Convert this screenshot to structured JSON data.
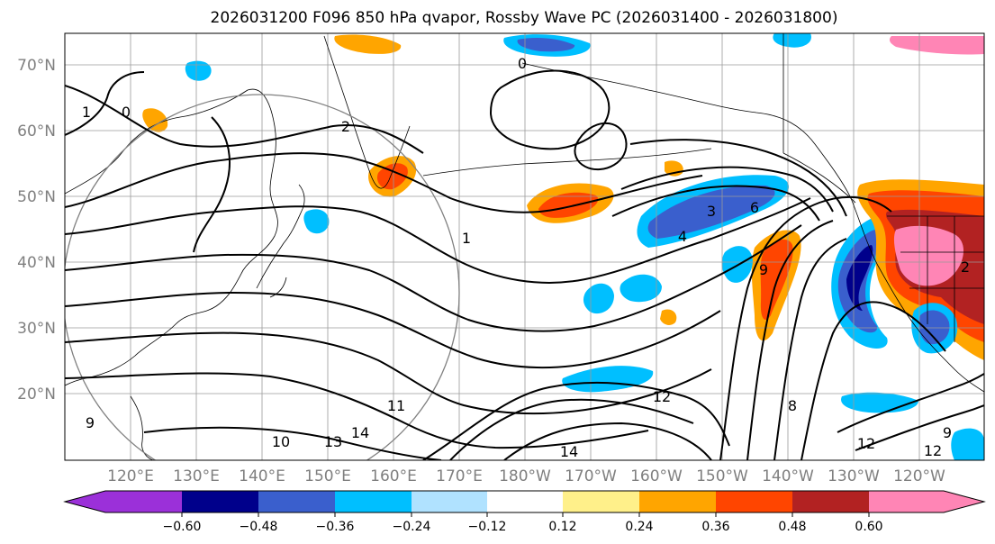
{
  "title": "2026031200 F096 850 hPa qvapor, Rossby Wave PC (2026031400 - 2026031800)",
  "latitude_labels": [
    "70°N",
    "60°N",
    "50°N",
    "40°N",
    "30°N",
    "20°N"
  ],
  "longitude_labels": [
    "120°E",
    "130°E",
    "140°E",
    "150°E",
    "160°E",
    "170°E",
    "180°W",
    "170°W",
    "160°W",
    "150°W",
    "140°W",
    "130°W",
    "120°W"
  ],
  "colorbar": {
    "ticks": [
      "−0.60",
      "−0.48",
      "−0.36",
      "−0.24",
      "−0.12",
      "0.12",
      "0.24",
      "0.36",
      "0.48",
      "0.60"
    ],
    "colors": [
      "#9b30d9",
      "#00008b",
      "#3a5fcd",
      "#00bfff",
      "#b0e2ff",
      "#ffffff",
      "#fff08a",
      "#ffa500",
      "#ff4500",
      "#b22222",
      "#ff85b5"
    ],
    "extend": "both"
  },
  "contour_labels": [
    "1",
    "0",
    "2",
    "0",
    "1",
    "3",
    "4",
    "6",
    "9",
    "8",
    "2",
    "10",
    "13",
    "14",
    "11",
    "12",
    "14",
    "12",
    "12",
    "9",
    "9"
  ],
  "anomaly_colors": {
    "strong_negative": "#00008b",
    "negative": "#3a5fcd",
    "weak_negative": "#00bfff",
    "positive": "#ffa500",
    "strong_positive": "#ff4500",
    "very_strong_positive": "#b22222",
    "extreme_positive": "#ff85b5"
  }
}
